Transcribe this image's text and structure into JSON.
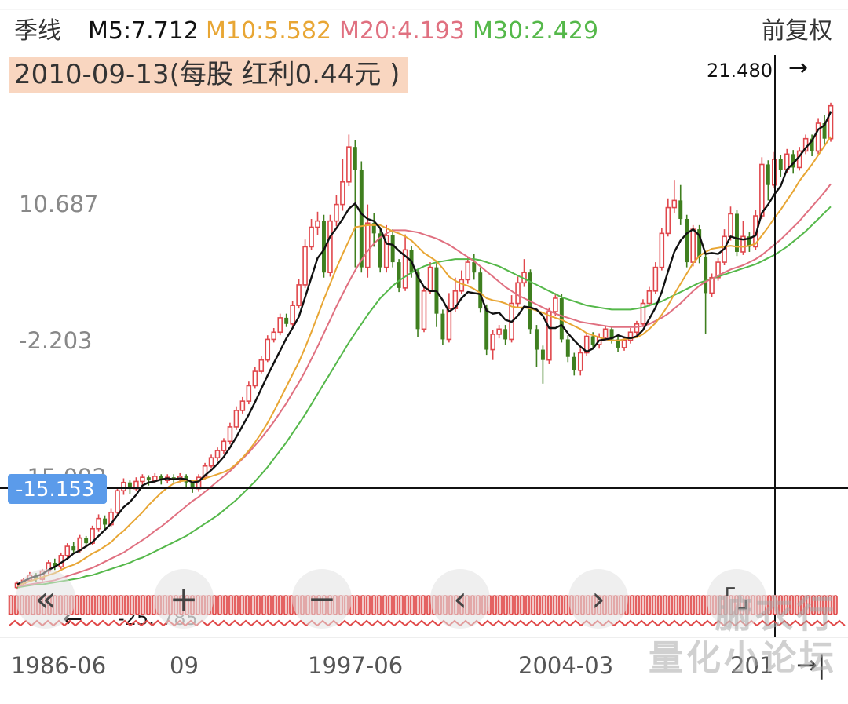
{
  "header": {
    "period": "季线",
    "m5": "M5:7.712",
    "m10": "M10:5.582",
    "m20": "M20:4.193",
    "m30": "M30:2.429",
    "adjust": "前复权"
  },
  "colors": {
    "up": "#e0474c",
    "down": "#3f7f1f",
    "m5": "#111111",
    "m10": "#e8a634",
    "m20": "#e07080",
    "m30": "#55b84a",
    "crosshair_label_bg": "#5b9bea"
  },
  "selection": {
    "date_label": "2010-09-13(每股 红利0.44元 )",
    "crosshair_value": "-15.153"
  },
  "controls": [
    {
      "name": "scroll-left-fast-button",
      "icon": "«"
    },
    {
      "name": "zoom-in-button",
      "icon": "+"
    },
    {
      "name": "zoom-out-button",
      "icon": "−"
    },
    {
      "name": "scroll-left-button",
      "icon": "‹"
    },
    {
      "name": "scroll-right-button",
      "icon": "›"
    },
    {
      "name": "fullscreen-button",
      "icon": "⌜⌟"
    }
  ],
  "price_markers": {
    "high": {
      "label": "21.480",
      "arrow": "→"
    },
    "low": {
      "label": "-25.",
      "arrow": "←",
      "partial": "785"
    }
  },
  "chart_data": {
    "type": "candlestick",
    "period": "quarterly",
    "y_ticks": [
      "10.687",
      "-2.203",
      "-15.092"
    ],
    "x_ticks": [
      "1986-06",
      "09",
      "1997-06",
      "2004-03",
      "201"
    ],
    "end_icon": "→|",
    "ylim": [
      -28.0,
      24.0
    ],
    "max_value": 21.48,
    "min_value": -25.785,
    "crosshair": {
      "x": "2010-09-13",
      "y": -15.153
    },
    "candles": [
      [
        -25.6,
        -25.2,
        -25.0,
        -25.8
      ],
      [
        -25.2,
        -24.9,
        -24.7,
        -25.4
      ],
      [
        -24.9,
        -24.4,
        -24.1,
        -25.1
      ],
      [
        -24.4,
        -24.8,
        -24.2,
        -25.1
      ],
      [
        -24.8,
        -24.0,
        -23.8,
        -25.0
      ],
      [
        -24.0,
        -23.2,
        -22.9,
        -24.3
      ],
      [
        -23.2,
        -23.6,
        -22.8,
        -23.9
      ],
      [
        -23.6,
        -22.5,
        -22.2,
        -23.8
      ],
      [
        -22.5,
        -21.6,
        -21.3,
        -22.8
      ],
      [
        -21.6,
        -22.0,
        -21.2,
        -22.3
      ],
      [
        -22.0,
        -20.8,
        -20.5,
        -22.2
      ],
      [
        -20.8,
        -21.3,
        -20.6,
        -21.7
      ],
      [
        -21.3,
        -19.9,
        -19.6,
        -21.5
      ],
      [
        -19.9,
        -18.9,
        -18.5,
        -20.2
      ],
      [
        -18.9,
        -19.5,
        -18.6,
        -19.9
      ],
      [
        -19.5,
        -18.3,
        -17.9,
        -19.7
      ],
      [
        -18.3,
        -16.2,
        -15.9,
        -18.5
      ],
      [
        -16.2,
        -15.4,
        -15.0,
        -16.6
      ],
      [
        -15.4,
        -16.0,
        -15.2,
        -16.5
      ],
      [
        -16.0,
        -15.3,
        -14.9,
        -16.2
      ],
      [
        -15.3,
        -14.9,
        -14.6,
        -15.6
      ],
      [
        -14.9,
        -15.2,
        -14.7,
        -15.7
      ],
      [
        -15.2,
        -14.8,
        -14.5,
        -15.5
      ],
      [
        -14.8,
        -15.2,
        -14.6,
        -15.6
      ],
      [
        -15.2,
        -14.9,
        -14.6,
        -15.5
      ],
      [
        -14.9,
        -15.1,
        -14.6,
        -15.4
      ],
      [
        -15.1,
        -14.8,
        -14.5,
        -15.4
      ],
      [
        -14.8,
        -15.4,
        -14.6,
        -15.8
      ],
      [
        -15.4,
        -16.0,
        -15.3,
        -16.4
      ],
      [
        -16.0,
        -14.9,
        -14.6,
        -16.3
      ],
      [
        -14.9,
        -13.8,
        -13.5,
        -15.1
      ],
      [
        -13.8,
        -13.0,
        -12.7,
        -14.0
      ],
      [
        -13.0,
        -12.3,
        -12.0,
        -13.3
      ],
      [
        -12.3,
        -11.4,
        -11.1,
        -12.6
      ],
      [
        -11.4,
        -10.0,
        -9.6,
        -11.7
      ],
      [
        -10.0,
        -8.4,
        -8.0,
        -10.3
      ],
      [
        -8.4,
        -7.5,
        -7.1,
        -8.7
      ],
      [
        -7.5,
        -6.0,
        -5.6,
        -7.8
      ],
      [
        -6.0,
        -4.6,
        -4.2,
        -6.3
      ],
      [
        -4.6,
        -3.5,
        -3.1,
        -4.8
      ],
      [
        -3.5,
        -1.5,
        -1.1,
        -3.7
      ],
      [
        -1.5,
        -0.8,
        -0.4,
        -1.8
      ],
      [
        -0.8,
        0.6,
        1.0,
        -1.1
      ],
      [
        0.6,
        0.0,
        1.0,
        -0.3
      ],
      [
        0.0,
        1.8,
        2.2,
        -0.3
      ],
      [
        1.8,
        3.8,
        4.4,
        1.5
      ],
      [
        3.8,
        7.5,
        8.2,
        3.5
      ],
      [
        7.5,
        9.4,
        10.2,
        7.2
      ],
      [
        9.4,
        10.0,
        10.9,
        8.6
      ],
      [
        10.0,
        5.0,
        10.6,
        4.5
      ],
      [
        5.0,
        10.0,
        10.6,
        4.6
      ],
      [
        10.0,
        11.6,
        12.5,
        9.5
      ],
      [
        11.6,
        13.8,
        16.0,
        11.0
      ],
      [
        13.8,
        17.2,
        18.4,
        13.4
      ],
      [
        17.2,
        15.0,
        17.9,
        5.5
      ],
      [
        15.0,
        5.5,
        15.8,
        5.0
      ],
      [
        5.5,
        9.8,
        11.6,
        4.5
      ],
      [
        9.8,
        8.8,
        10.8,
        7.5
      ],
      [
        8.8,
        5.5,
        9.3,
        5.0
      ],
      [
        5.5,
        8.6,
        9.6,
        5.0
      ],
      [
        8.6,
        6.0,
        9.2,
        5.5
      ],
      [
        6.0,
        3.5,
        6.3,
        3.1
      ],
      [
        3.5,
        7.2,
        8.7,
        3.2
      ],
      [
        7.2,
        5.0,
        7.6,
        4.5
      ],
      [
        5.0,
        -0.5,
        5.3,
        -1.3
      ],
      [
        -0.5,
        3.2,
        3.6,
        -0.8
      ],
      [
        3.2,
        5.5,
        6.0,
        2.9
      ],
      [
        5.5,
        1.0,
        5.9,
        -0.3
      ],
      [
        1.0,
        -1.5,
        1.4,
        -2.0
      ],
      [
        -1.5,
        1.5,
        3.0,
        -1.8
      ],
      [
        1.5,
        3.2,
        4.5,
        1.2
      ],
      [
        3.2,
        4.3,
        5.2,
        2.9
      ],
      [
        4.3,
        6.0,
        6.5,
        3.9
      ],
      [
        6.0,
        5.0,
        6.8,
        4.3
      ],
      [
        5.0,
        1.5,
        5.5,
        1.1
      ],
      [
        1.5,
        -2.5,
        1.9,
        -3.0
      ],
      [
        -2.5,
        -1.0,
        -0.6,
        -3.5
      ],
      [
        -1.0,
        -0.5,
        -0.1,
        -1.4
      ],
      [
        -0.5,
        -1.5,
        -0.1,
        -2.0
      ],
      [
        -1.5,
        2.0,
        2.8,
        -1.8
      ],
      [
        2.0,
        4.0,
        4.6,
        1.6
      ],
      [
        4.0,
        5.0,
        6.3,
        3.6
      ],
      [
        5.0,
        -0.5,
        5.3,
        -1.0
      ],
      [
        -0.5,
        -2.5,
        -0.1,
        -4.2
      ],
      [
        -2.5,
        -3.5,
        -2.1,
        -5.8
      ],
      [
        -3.5,
        1.2,
        1.6,
        -3.9
      ],
      [
        1.2,
        2.5,
        3.0,
        0.8
      ],
      [
        2.5,
        -1.5,
        2.9,
        -1.8
      ],
      [
        -1.5,
        -3.2,
        -1.1,
        -3.7
      ],
      [
        -3.2,
        -4.5,
        -2.8,
        -5.0
      ],
      [
        -4.5,
        -2.8,
        -2.4,
        -5.0
      ],
      [
        -2.8,
        -1.2,
        -0.9,
        -3.1
      ],
      [
        -1.2,
        -2.0,
        -0.8,
        -2.3
      ],
      [
        -2.0,
        -1.3,
        -0.9,
        -2.4
      ],
      [
        -1.3,
        -0.5,
        -0.2,
        -1.6
      ],
      [
        -0.5,
        -1.5,
        -0.2,
        -1.9
      ],
      [
        -1.5,
        -2.3,
        -1.2,
        -2.7
      ],
      [
        -2.3,
        -1.6,
        -1.2,
        -2.6
      ],
      [
        -1.6,
        -0.8,
        -0.4,
        -1.9
      ],
      [
        -0.8,
        0.0,
        0.3,
        -1.1
      ],
      [
        0.0,
        2.0,
        2.4,
        -0.3
      ],
      [
        2.0,
        3.2,
        3.6,
        1.7
      ],
      [
        3.2,
        5.5,
        6.0,
        2.9
      ],
      [
        5.5,
        8.8,
        9.3,
        5.2
      ],
      [
        8.8,
        11.3,
        12.2,
        8.5
      ],
      [
        11.3,
        12.0,
        14.0,
        10.8
      ],
      [
        12.0,
        10.2,
        13.5,
        9.6
      ],
      [
        10.2,
        6.0,
        10.6,
        5.5
      ],
      [
        6.0,
        9.2,
        9.6,
        5.6
      ],
      [
        9.2,
        6.5,
        9.6,
        5.9
      ],
      [
        6.5,
        3.0,
        6.9,
        -1.0
      ],
      [
        3.0,
        4.5,
        4.9,
        2.6
      ],
      [
        4.5,
        6.0,
        6.4,
        4.2
      ],
      [
        6.0,
        8.5,
        9.2,
        5.7
      ],
      [
        8.5,
        10.7,
        11.4,
        8.1
      ],
      [
        10.7,
        7.0,
        11.1,
        6.6
      ],
      [
        7.0,
        8.5,
        10.0,
        6.7
      ],
      [
        8.5,
        7.5,
        8.9,
        7.0
      ],
      [
        7.5,
        10.5,
        11.1,
        7.2
      ],
      [
        10.5,
        15.5,
        16.2,
        10.2
      ],
      [
        15.5,
        13.5,
        15.9,
        12.0
      ],
      [
        13.5,
        16.0,
        16.7,
        13.2
      ],
      [
        16.0,
        15.0,
        16.4,
        14.3
      ],
      [
        15.0,
        16.5,
        17.0,
        14.7
      ],
      [
        16.5,
        15.2,
        16.9,
        14.6
      ],
      [
        15.2,
        16.8,
        17.2,
        14.9
      ],
      [
        16.8,
        18.0,
        18.4,
        16.5
      ],
      [
        18.0,
        16.8,
        18.4,
        16.3
      ],
      [
        16.8,
        19.5,
        20.0,
        16.5
      ],
      [
        19.5,
        18.0,
        20.3,
        17.5
      ],
      [
        18.0,
        21.2,
        21.5,
        17.7
      ]
    ],
    "series": [
      {
        "name": "M5",
        "values": [
          -25.3,
          -25.0,
          -24.7,
          -24.5,
          -24.3,
          -23.9,
          -23.6,
          -23.2,
          -22.8,
          -22.3,
          -22.0,
          -21.6,
          -21.2,
          -20.6,
          -20.0,
          -19.4,
          -18.6,
          -17.8,
          -17.3,
          -16.6,
          -15.7,
          -15.4,
          -15.3,
          -15.1,
          -15.0,
          -15.1,
          -15.0,
          -15.1,
          -15.4,
          -15.3,
          -14.7,
          -14.2,
          -13.6,
          -12.9,
          -12.0,
          -11.0,
          -9.9,
          -8.8,
          -7.6,
          -6.3,
          -5.0,
          -3.8,
          -2.6,
          -1.4,
          -0.4,
          0.7,
          2.6,
          4.5,
          6.4,
          7.2,
          8.5,
          9.3,
          10.2,
          11.2,
          11.7,
          10.7,
          10.2,
          10.0,
          9.3,
          7.8,
          7.7,
          7.1,
          6.6,
          6.1,
          4.6,
          3.6,
          3.2,
          3.2,
          2.3,
          1.2,
          1.6,
          2.5,
          3.1,
          3.0,
          2.9,
          1.3,
          1.0,
          1.1,
          0.4,
          0.2,
          0.8,
          1.7,
          1.6,
          1.4,
          0.8,
          -0.4,
          -0.4,
          -0.1,
          -0.9,
          -1.6,
          -2.2,
          -2.7,
          -2.4,
          -1.6,
          -1.5,
          -1.4,
          -1.1,
          -1.3,
          -1.4,
          -1.2,
          -0.6,
          0.5,
          1.6,
          3.1,
          5.1,
          7.0,
          8.1,
          8.8,
          9.2,
          8.6,
          6.8,
          6.9,
          6.8,
          7.3,
          8.5,
          8.3,
          8.2,
          8.3,
          8.6,
          10.8,
          11.6,
          12.6,
          13.4,
          15.0,
          15.6,
          16.3,
          17.1,
          17.8,
          18.9,
          19.3,
          20.6
        ]
      },
      {
        "name": "M10",
        "values": [
          -25.4,
          -25.2,
          -25.0,
          -24.8,
          -24.6,
          -24.4,
          -24.2,
          -23.9,
          -23.6,
          -23.4,
          -23.1,
          -22.7,
          -22.3,
          -22.0,
          -21.6,
          -21.2,
          -20.6,
          -20.1,
          -19.5,
          -18.9,
          -18.3,
          -17.6,
          -17.0,
          -16.4,
          -15.9,
          -15.5,
          -15.3,
          -15.2,
          -15.2,
          -15.2,
          -15.0,
          -14.8,
          -14.6,
          -14.4,
          -14.1,
          -13.6,
          -13.0,
          -12.3,
          -11.5,
          -10.6,
          -9.6,
          -8.5,
          -7.3,
          -6.1,
          -4.9,
          -3.7,
          -2.3,
          -0.8,
          0.8,
          2.4,
          3.9,
          5.4,
          6.8,
          8.1,
          9.4,
          9.5,
          9.6,
          9.6,
          9.6,
          9.3,
          9.0,
          8.8,
          8.5,
          8.1,
          7.5,
          6.9,
          6.5,
          6.1,
          5.4,
          4.6,
          4.2,
          3.9,
          3.7,
          3.4,
          3.0,
          2.5,
          2.3,
          2.2,
          2.0,
          1.7,
          1.6,
          1.6,
          1.5,
          1.3,
          1.1,
          0.8,
          0.6,
          0.4,
          0.1,
          -0.2,
          -0.5,
          -0.9,
          -1.1,
          -1.3,
          -1.5,
          -1.6,
          -1.6,
          -1.5,
          -1.4,
          -1.3,
          -1.0,
          -0.5,
          0.1,
          0.9,
          1.8,
          2.9,
          3.9,
          4.9,
          5.9,
          6.6,
          7.0,
          7.3,
          7.4,
          7.5,
          7.6,
          7.5,
          7.5,
          7.6,
          7.8,
          8.6,
          9.4,
          10.3,
          11.1,
          12.0,
          12.9,
          13.9,
          14.7,
          15.5,
          16.4,
          17.3,
          18.2
        ]
      },
      {
        "name": "M20",
        "values": [
          -25.5,
          -25.4,
          -25.3,
          -25.2,
          -25.1,
          -25.0,
          -24.9,
          -24.7,
          -24.5,
          -24.3,
          -24.1,
          -23.9,
          -23.7,
          -23.4,
          -23.1,
          -22.8,
          -22.5,
          -22.2,
          -21.8,
          -21.4,
          -21.0,
          -20.6,
          -20.1,
          -19.7,
          -19.2,
          -18.7,
          -18.2,
          -17.7,
          -17.2,
          -16.8,
          -16.3,
          -15.8,
          -15.3,
          -14.8,
          -14.3,
          -13.7,
          -13.1,
          -12.5,
          -11.8,
          -11.1,
          -10.3,
          -9.5,
          -8.6,
          -7.7,
          -6.7,
          -5.7,
          -4.6,
          -3.4,
          -2.2,
          -0.9,
          0.4,
          1.7,
          2.9,
          4.1,
          5.2,
          6.2,
          7.1,
          7.8,
          8.4,
          8.8,
          9.1,
          9.1,
          9.1,
          9.0,
          8.9,
          8.7,
          8.5,
          8.3,
          8.0,
          7.7,
          7.3,
          6.9,
          6.5,
          6.1,
          5.6,
          5.1,
          4.6,
          4.1,
          3.6,
          3.2,
          2.8,
          2.5,
          2.2,
          1.9,
          1.6,
          1.3,
          1.0,
          0.8,
          0.6,
          0.4,
          0.2,
          0.1,
          0.0,
          -0.1,
          -0.2,
          -0.3,
          -0.3,
          -0.3,
          -0.3,
          -0.3,
          -0.2,
          0.0,
          0.3,
          0.6,
          1.0,
          1.5,
          2.0,
          2.6,
          3.2,
          3.7,
          4.1,
          4.4,
          4.7,
          5.0,
          5.3,
          5.5,
          5.7,
          6.0,
          6.3,
          6.7,
          7.2,
          7.7,
          8.2,
          8.8,
          9.4,
          10.0,
          10.7,
          11.4,
          12.1,
          12.8,
          13.6
        ]
      },
      {
        "name": "M30",
        "values": [
          -25.6,
          -25.5,
          -25.4,
          -25.3,
          -25.3,
          -25.2,
          -25.1,
          -25.0,
          -24.9,
          -24.8,
          -24.7,
          -24.5,
          -24.4,
          -24.2,
          -24.0,
          -23.8,
          -23.6,
          -23.4,
          -23.2,
          -22.9,
          -22.7,
          -22.4,
          -22.1,
          -21.8,
          -21.5,
          -21.2,
          -20.9,
          -20.6,
          -20.2,
          -19.8,
          -19.4,
          -19.0,
          -18.6,
          -18.1,
          -17.6,
          -17.1,
          -16.5,
          -15.9,
          -15.3,
          -14.6,
          -13.9,
          -13.1,
          -12.3,
          -11.5,
          -10.6,
          -9.7,
          -8.8,
          -7.8,
          -6.8,
          -5.8,
          -4.8,
          -3.8,
          -2.8,
          -1.8,
          -0.9,
          0.0,
          0.9,
          1.7,
          2.5,
          3.1,
          3.7,
          4.2,
          4.6,
          5.0,
          5.3,
          5.6,
          5.8,
          6.0,
          6.1,
          6.2,
          6.3,
          6.3,
          6.3,
          6.3,
          6.2,
          6.0,
          5.8,
          5.6,
          5.3,
          5.0,
          4.7,
          4.4,
          4.1,
          3.8,
          3.5,
          3.2,
          2.9,
          2.6,
          2.4,
          2.2,
          2.0,
          1.8,
          1.7,
          1.6,
          1.5,
          1.4,
          1.4,
          1.4,
          1.4,
          1.5,
          1.6,
          1.8,
          2.0,
          2.2,
          2.5,
          2.8,
          3.1,
          3.4,
          3.7,
          4.0,
          4.2,
          4.4,
          4.6,
          4.8,
          5.0,
          5.2,
          5.4,
          5.6,
          5.8,
          6.1,
          6.4,
          6.7,
          7.1,
          7.5,
          8.0,
          8.5,
          9.0,
          9.6,
          10.2,
          10.8,
          11.4
        ]
      }
    ]
  },
  "watermark": {
    "line1": "腑衣行",
    "line2": "量化小论坛"
  }
}
